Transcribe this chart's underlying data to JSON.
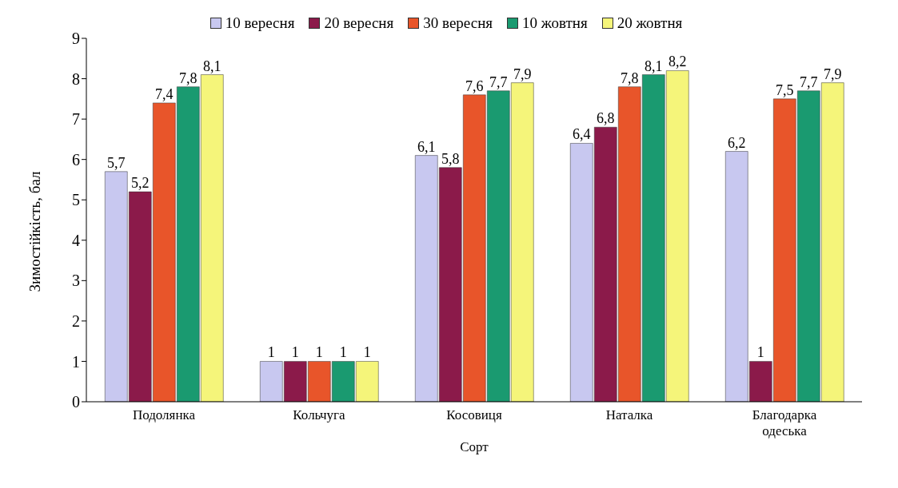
{
  "chart_data": {
    "type": "bar",
    "xlabel": "Сорт",
    "ylabel": "Зимостійкість, бал",
    "categories": [
      "Подолянка",
      "Кольчуга",
      "Косовиця",
      "Наталка",
      "Благодарка одеська"
    ],
    "series": [
      {
        "name": "10 вересня",
        "color": "#c8c8f0",
        "values": [
          5.7,
          1,
          6.1,
          6.4,
          6.2
        ],
        "value_labels": [
          "5,7",
          "1",
          "6,1",
          "6,4",
          "6,2"
        ]
      },
      {
        "name": "20 вересня",
        "color": "#8b1a4a",
        "values": [
          5.2,
          1,
          5.8,
          6.8,
          1
        ],
        "value_labels": [
          "5,2",
          "1",
          "5,8",
          "6,8",
          "1"
        ]
      },
      {
        "name": "30 вересня",
        "color": "#e8552a",
        "values": [
          7.4,
          1,
          7.6,
          7.8,
          7.5
        ],
        "value_labels": [
          "7,4",
          "1",
          "7,6",
          "7,8",
          "7,5"
        ]
      },
      {
        "name": "10 жовтня",
        "color": "#1a9a70",
        "values": [
          7.8,
          1,
          7.7,
          8.1,
          7.7
        ],
        "value_labels": [
          "7,8",
          "1",
          "7,7",
          "8,1",
          "7,7"
        ]
      },
      {
        "name": "20 жовтня",
        "color": "#f5f57a",
        "values": [
          8.1,
          1,
          7.9,
          8.2,
          7.9
        ],
        "value_labels": [
          "8,1",
          "1",
          "7,9",
          "8,2",
          "7,9"
        ]
      }
    ],
    "ylim": [
      0,
      9
    ],
    "yticks": [
      0,
      1,
      2,
      3,
      4,
      5,
      6,
      7,
      8,
      9
    ],
    "grid": false,
    "legend": "top"
  }
}
